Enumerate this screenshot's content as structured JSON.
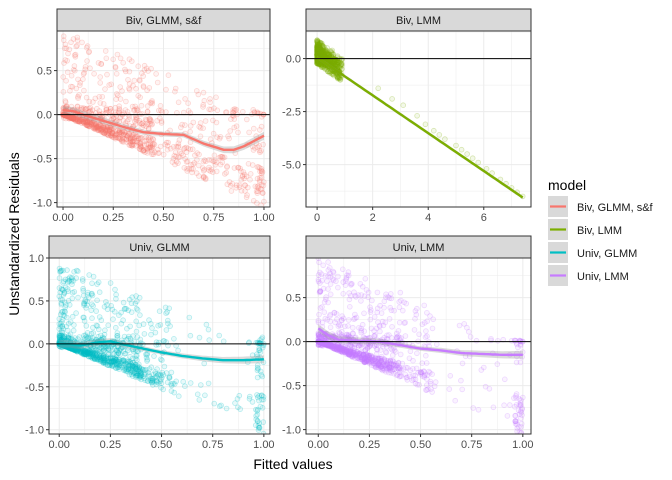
{
  "figure": {
    "xlabel": "Fitted values",
    "ylabel": "Unstandardized Residuals"
  },
  "legend": {
    "title": "model",
    "items": [
      {
        "label": "Biv, GLMM, s&f",
        "color": "#F8766D"
      },
      {
        "label": "Biv, LMM",
        "color": "#7CAE00"
      },
      {
        "label": "Univ, GLMM",
        "color": "#00BFC4"
      },
      {
        "label": "Univ, LMM",
        "color": "#C77CFF"
      }
    ]
  },
  "chart_data": [
    {
      "type": "scatter",
      "title": "Biv, GLMM, s&f",
      "color": "#F8766D",
      "xlim": [
        -0.03,
        1.03
      ],
      "ylim": [
        -1.05,
        0.95
      ],
      "xticks": [
        0.0,
        0.25,
        0.5,
        0.75,
        1.0
      ],
      "xtick_labels": [
        "0.00",
        "0.25",
        "0.50",
        "0.75",
        "1.00"
      ],
      "yticks": [
        -1.0,
        -0.5,
        0.0,
        0.5
      ],
      "ytick_labels": [
        "-1.0",
        "-0.5",
        "0.0",
        "0.5"
      ],
      "hline": 0,
      "smooth": {
        "x": [
          0.0,
          0.05,
          0.1,
          0.2,
          0.3,
          0.4,
          0.5,
          0.6,
          0.7,
          0.8,
          0.85,
          0.9,
          1.0
        ],
        "y": [
          0.05,
          0.04,
          0.0,
          -0.07,
          -0.14,
          -0.2,
          -0.22,
          -0.23,
          -0.33,
          -0.4,
          -0.4,
          -0.36,
          -0.24
        ]
      },
      "point_model": {
        "kind": "bounded",
        "n": 950,
        "x_dist": "cluster",
        "x_max": 1.0,
        "seed": 11
      }
    },
    {
      "type": "scatter",
      "title": "Biv, LMM",
      "color": "#7CAE00",
      "xlim": [
        -0.4,
        7.7
      ],
      "ylim": [
        -7.0,
        1.3
      ],
      "xticks": [
        0,
        2,
        4,
        6
      ],
      "xtick_labels": [
        "0",
        "2",
        "4",
        "6"
      ],
      "yticks": [
        -5.0,
        -2.5,
        0.0
      ],
      "ytick_labels": [
        "-5.0",
        "-2.5",
        "0.0"
      ],
      "hline": 0,
      "smooth": {
        "x": [
          0,
          7.4
        ],
        "y": [
          0.05,
          -6.55
        ]
      },
      "points_extra": [
        [
          3.6,
          -2.7
        ],
        [
          3.9,
          -3.1
        ],
        [
          4.2,
          -3.4
        ],
        [
          4.4,
          -3.6
        ],
        [
          4.6,
          -3.8
        ],
        [
          5.0,
          -4.1
        ],
        [
          5.2,
          -4.3
        ],
        [
          5.4,
          -4.5
        ],
        [
          5.6,
          -4.7
        ],
        [
          5.8,
          -4.9
        ],
        [
          6.1,
          -5.2
        ],
        [
          6.3,
          -5.4
        ],
        [
          6.6,
          -5.7
        ],
        [
          6.8,
          -5.9
        ],
        [
          7.0,
          -6.1
        ],
        [
          7.2,
          -6.3
        ],
        [
          7.4,
          -6.5
        ],
        [
          3.1,
          -2.2
        ],
        [
          2.7,
          -1.9
        ],
        [
          2.2,
          -1.4
        ]
      ],
      "point_model": {
        "kind": "linear",
        "n": 650,
        "seed": 23
      }
    },
    {
      "type": "scatter",
      "title": "Univ, GLMM",
      "color": "#00BFC4",
      "xlim": [
        -0.05,
        1.03
      ],
      "ylim": [
        -1.05,
        1.0
      ],
      "xticks": [
        0.0,
        0.25,
        0.5,
        0.75,
        1.0
      ],
      "xtick_labels": [
        "0.00",
        "0.25",
        "0.50",
        "0.75",
        "1.00"
      ],
      "yticks": [
        -1.0,
        -0.5,
        0.0,
        0.5,
        1.0
      ],
      "ytick_labels": [
        "-1.0",
        "-0.5",
        "0.0",
        "0.5",
        "1.0"
      ],
      "hline": 0,
      "smooth": {
        "x": [
          0.0,
          0.05,
          0.1,
          0.2,
          0.25,
          0.3,
          0.4,
          0.5,
          0.6,
          0.7,
          0.8,
          0.9,
          1.0
        ],
        "y": [
          0.0,
          0.0,
          -0.02,
          0.02,
          0.03,
          0.0,
          -0.05,
          -0.1,
          -0.14,
          -0.17,
          -0.19,
          -0.19,
          -0.18
        ]
      },
      "point_model": {
        "kind": "bounded",
        "n": 1100,
        "x_dist": "low",
        "x_max": 1.0,
        "seed": 37
      }
    },
    {
      "type": "scatter",
      "title": "Univ, LMM",
      "color": "#C77CFF",
      "xlim": [
        -0.06,
        1.04
      ],
      "ylim": [
        -1.05,
        0.95
      ],
      "xticks": [
        0.0,
        0.25,
        0.5,
        0.75,
        1.0
      ],
      "xtick_labels": [
        "0.00",
        "0.25",
        "0.50",
        "0.75",
        "1.00"
      ],
      "yticks": [
        -1.0,
        -0.5,
        0.0,
        0.5
      ],
      "ytick_labels": [
        "-1.0",
        "-0.5",
        "0.0",
        "0.5"
      ],
      "hline": 0,
      "smooth": {
        "x": [
          0.0,
          0.05,
          0.1,
          0.2,
          0.3,
          0.4,
          0.5,
          0.6,
          0.7,
          0.8,
          0.9,
          1.0
        ],
        "y": [
          0.15,
          0.07,
          0.02,
          0.01,
          0.0,
          -0.04,
          -0.08,
          -0.1,
          -0.13,
          -0.14,
          -0.15,
          -0.15
        ]
      },
      "point_model": {
        "kind": "bounded",
        "n": 1100,
        "x_dist": "low",
        "x_max": 1.0,
        "seed": 53
      }
    }
  ]
}
